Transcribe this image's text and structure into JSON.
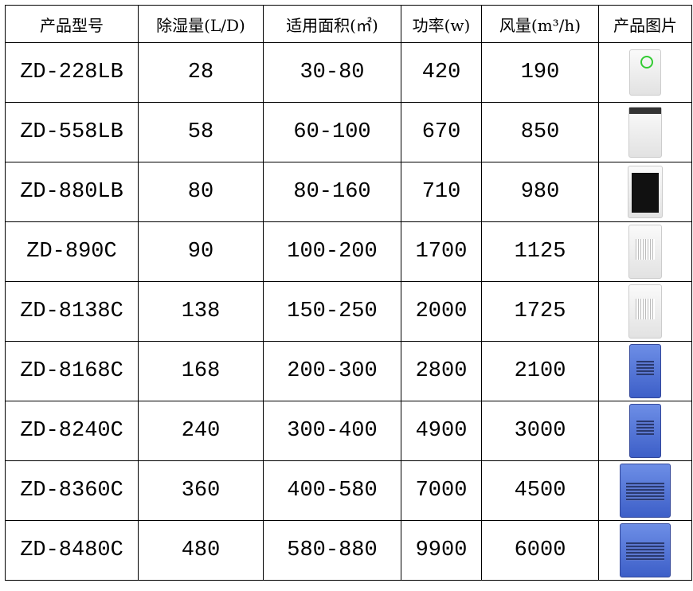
{
  "headers": [
    "产品型号",
    "除湿量(L/D)",
    "适用面积(㎡)",
    "功率(w)",
    "风量(m³/h)",
    "产品图片"
  ],
  "rows": [
    {
      "model": "ZD-228LB",
      "capacity": "28",
      "area": "30-80",
      "power": "420",
      "airflow": "190",
      "image": "white-compact-dehumidifier"
    },
    {
      "model": "ZD-558LB",
      "capacity": "58",
      "area": "60-100",
      "power": "670",
      "airflow": "850",
      "image": "white-tall-dehumidifier"
    },
    {
      "model": "ZD-880LB",
      "capacity": "80",
      "area": "80-160",
      "power": "710",
      "airflow": "980",
      "image": "black-front-dehumidifier"
    },
    {
      "model": "ZD-890C",
      "capacity": "90",
      "area": "100-200",
      "power": "1700",
      "airflow": "1125",
      "image": "white-grille-dehumidifier"
    },
    {
      "model": "ZD-8138C",
      "capacity": "138",
      "area": "150-250",
      "power": "2000",
      "airflow": "1725",
      "image": "white-grille-dehumidifier"
    },
    {
      "model": "ZD-8168C",
      "capacity": "168",
      "area": "200-300",
      "power": "2800",
      "airflow": "2100",
      "image": "blue-industrial-dehumidifier"
    },
    {
      "model": "ZD-8240C",
      "capacity": "240",
      "area": "300-400",
      "power": "4900",
      "airflow": "3000",
      "image": "blue-industrial-dehumidifier"
    },
    {
      "model": "ZD-8360C",
      "capacity": "360",
      "area": "400-580",
      "power": "7000",
      "airflow": "4500",
      "image": "blue-wide-dehumidifier"
    },
    {
      "model": "ZD-8480C",
      "capacity": "480",
      "area": "580-880",
      "power": "9900",
      "airflow": "6000",
      "image": "blue-wide-dehumidifier"
    }
  ]
}
